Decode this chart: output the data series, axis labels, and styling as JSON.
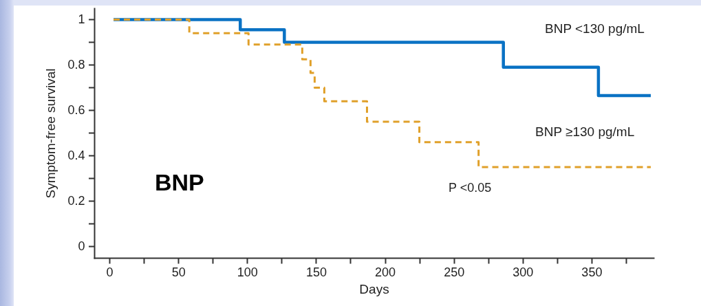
{
  "chart_data": {
    "type": "step",
    "xlabel": "Days",
    "ylabel": "Symptom-free survival",
    "series": [
      {
        "name": "BNP <130 pg/mL",
        "color": "#0a72c4",
        "line_style": "solid",
        "x": [
          3,
          95,
          127,
          286,
          355,
          393
        ],
        "values": [
          1,
          0.955,
          0.9,
          0.79,
          0.665,
          0.665
        ]
      },
      {
        "name": "BNP ≥130 pg/mL",
        "color": "#e0a02a",
        "line_style": "dashed",
        "x": [
          3,
          58,
          101,
          140,
          146,
          149,
          156,
          187,
          225,
          268,
          393
        ],
        "values": [
          1,
          0.94,
          0.89,
          0.825,
          0.765,
          0.7,
          0.64,
          0.55,
          0.46,
          0.35,
          0.35
        ]
      }
    ],
    "xlim": [
      -11,
      395
    ],
    "xticks": [
      0,
      {
        "value": 25,
        "label": null
      },
      50,
      {
        "value": 75,
        "label": null
      },
      100,
      {
        "value": 125,
        "label": null
      },
      150,
      {
        "value": 175,
        "label": null
      },
      200,
      {
        "value": 225,
        "label": null
      },
      250,
      {
        "value": 275,
        "label": null
      },
      300,
      {
        "value": 325,
        "label": null
      },
      350,
      {
        "value": 375,
        "label": null
      }
    ],
    "ylim": [
      -0.05,
      1.05
    ],
    "yticks": [
      0,
      {
        "value": 0.1,
        "label": null
      },
      0.2,
      {
        "value": 0.3,
        "label": null
      },
      0.4,
      {
        "value": 0.5,
        "label": null
      },
      0.6,
      {
        "value": 0.7,
        "label": null
      },
      0.8,
      {
        "value": 0.9,
        "label": null
      },
      1
    ],
    "annotations": [
      "BNP",
      "P <0.05"
    ],
    "legend": false,
    "grid": false,
    "marker": "none"
  }
}
